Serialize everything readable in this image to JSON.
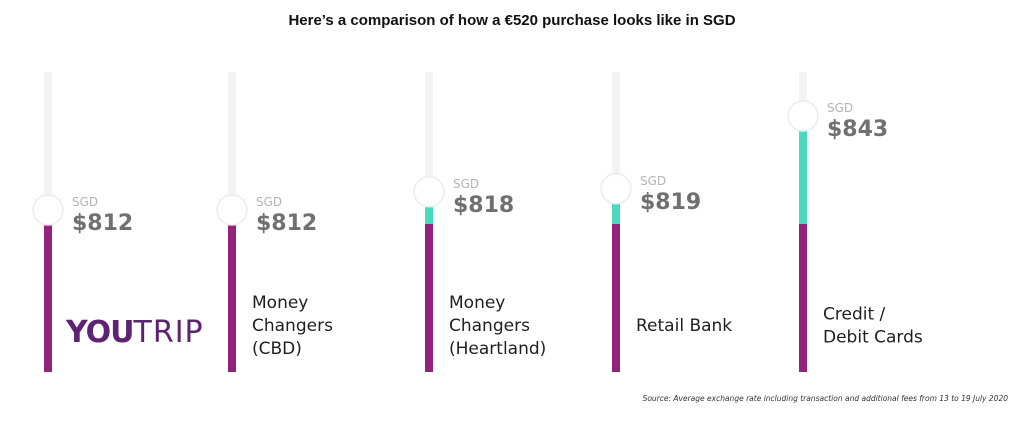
{
  "header": {
    "title": "Here’s a comparison of how a €520 purchase looks like in SGD"
  },
  "chart_data": {
    "type": "bar",
    "title": "Here’s a comparison of how a €520 purchase looks like in SGD",
    "currency_label": "SGD",
    "categories": [
      {
        "label_lines": [],
        "logo": {
          "part1": "YOU",
          "part2": "TRIP"
        },
        "value": 812,
        "display": "$812"
      },
      {
        "label_lines": [
          "Money",
          "Changers",
          "(CBD)"
        ],
        "value": 812,
        "display": "$812"
      },
      {
        "label_lines": [
          "Money",
          "Changers",
          "(Heartland)"
        ],
        "value": 818,
        "display": "$818"
      },
      {
        "label_lines": [
          "Retail Bank"
        ],
        "value": 819,
        "display": "$819"
      },
      {
        "label_lines": [
          "Credit /",
          "Debit Cards"
        ],
        "value": 843,
        "display": "$843"
      }
    ],
    "baseline_value": 812,
    "colors": {
      "base": "#93237f",
      "extra": "#4ad9bf",
      "track": "#f4f4f4",
      "marker": "#ffffff"
    }
  },
  "footer": {
    "source": "Source: Average exchange rate including transaction and additional fees from 13 to 19 July 2020"
  }
}
